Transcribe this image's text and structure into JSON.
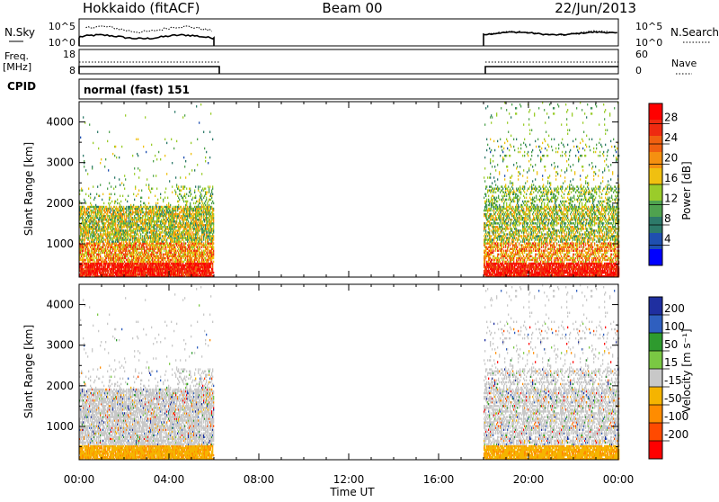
{
  "header": {
    "station": "Hokkaido (fitACF)",
    "beam": "Beam 00",
    "date": "22/Jun/2013"
  },
  "panels": {
    "nsky_label": "N.Sky",
    "nsearch_label": "N.Search",
    "nsky_ticks": [
      "10^5",
      "10^0"
    ],
    "nsearch_ticks": [
      "10^5",
      "10^0"
    ],
    "freq_label": "Freq.",
    "freq_unit": "[MHz]",
    "freq_ticks": [
      "18",
      "8"
    ],
    "nave_label": "Nave",
    "nave_ticks": [
      "60",
      "0"
    ],
    "cpid_label": "CPID",
    "cpid_text": "normal (fast) 151"
  },
  "axes": {
    "ylabel_power": "Slant Range [km]",
    "ylabel_velocity": "Slant Range [km]",
    "xlabel": "Time UT",
    "x_ticks": [
      "00:00",
      "04:00",
      "08:00",
      "12:00",
      "16:00",
      "20:00",
      "00:00"
    ],
    "y_ticks": [
      "1000",
      "2000",
      "3000",
      "4000"
    ]
  },
  "colorbars": {
    "power_label": "Power [dB]",
    "power_ticks": [
      "28",
      "24",
      "20",
      "16",
      "12",
      "8",
      "4"
    ],
    "velocity_label": "Velocity [m s⁻¹]",
    "velocity_ticks": [
      "200",
      "100",
      "50",
      "15",
      "-15",
      "-50",
      "-100",
      "-200"
    ]
  },
  "colors": {
    "power_scale": [
      "#0000ff",
      "#1f4fb0",
      "#2d7a6a",
      "#4fa24f",
      "#9acc2a",
      "#f0c010",
      "#f59010",
      "#f06010",
      "#ee2a10",
      "#ff0000"
    ],
    "velocity_scale": [
      "#ff0000",
      "#ff4a00",
      "#ff8c00",
      "#f5b400",
      "#c8c8c8",
      "#7ac843",
      "#2e9a2e",
      "#2f5fbf",
      "#1f2fa0"
    ]
  },
  "chart_data": {
    "type": "heatmap",
    "x_range_hours": [
      0,
      24
    ],
    "y_range_km": [
      180,
      4500
    ],
    "data_intervals_hours": [
      [
        0,
        6
      ],
      [
        18,
        24
      ]
    ],
    "power_range_db": [
      0,
      32
    ],
    "velocity_range_ms": [
      -250,
      250
    ]
  }
}
